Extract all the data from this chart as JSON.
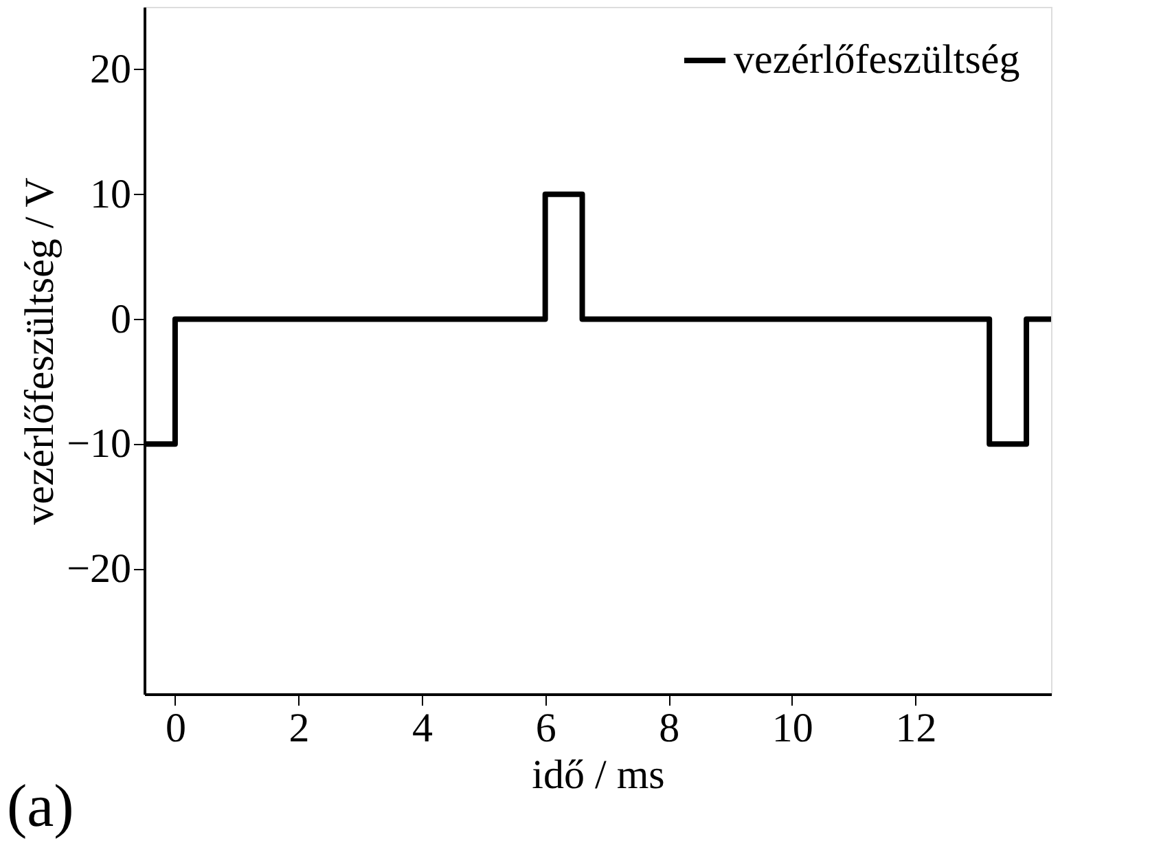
{
  "chart_data": {
    "type": "step",
    "xlabel": "idő / ms",
    "ylabel": "vezérlőfeszültség / V",
    "x": [
      -0.5,
      0,
      6,
      6.6,
      13.2,
      13.8,
      14.2
    ],
    "series": [
      {
        "name": "vezérlőfeszültség",
        "color": "#000000",
        "values": [
          -10,
          0,
          10,
          0,
          -10,
          0,
          0
        ]
      }
    ],
    "xlim": [
      -0.5,
      14.2
    ],
    "xticks": [
      0,
      2,
      4,
      6,
      8,
      10,
      12
    ],
    "ylim": [
      -30,
      25
    ],
    "yticks": [
      -20,
      -10,
      0,
      10,
      20
    ],
    "grid": false,
    "legend": "top right",
    "annotations": [
      "(a)"
    ]
  }
}
